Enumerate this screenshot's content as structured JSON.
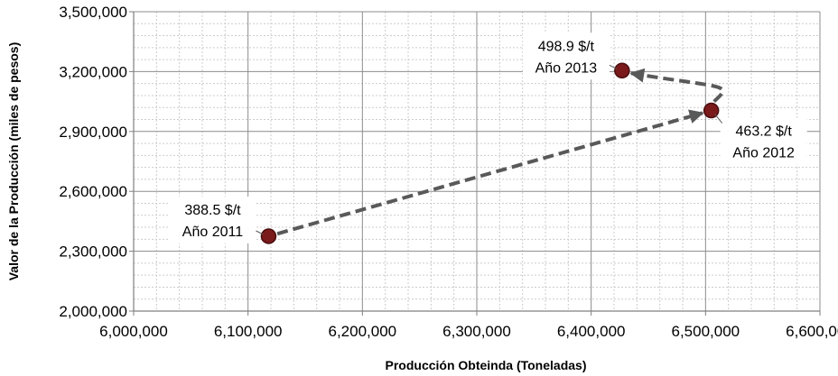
{
  "chart_data": {
    "type": "scatter",
    "title": "",
    "xlabel": "Producción Obteinda (Toneladas)",
    "ylabel": "Valor de la  Producción (miles de pesos)",
    "xlim": [
      6000000,
      6600000
    ],
    "ylim": [
      2000000,
      3500000
    ],
    "x_ticks": [
      6000000,
      6100000,
      6200000,
      6300000,
      6400000,
      6500000,
      6600000
    ],
    "x_tick_labels": [
      "6,000,000",
      "6,100,000",
      "6,200,000",
      "6,300,000",
      "6,400,000",
      "6,500,000",
      "6,600,000"
    ],
    "y_ticks": [
      2000000,
      2300000,
      2600000,
      2900000,
      3200000,
      3500000
    ],
    "y_tick_labels": [
      "2,000,000",
      "2,300,000",
      "2,600,000",
      "2,900,000",
      "3,200,000",
      "3,500,000"
    ],
    "grid": true,
    "connector": "dashed arrows",
    "points": [
      {
        "x": 6118000,
        "y": 2375000,
        "price": "388.5 $/t",
        "year": "Año  2011"
      },
      {
        "x": 6505000,
        "y": 3005000,
        "price": "463.2 $/t",
        "year": "Año 2012"
      },
      {
        "x": 6427000,
        "y": 3205000,
        "price": "498.9 $/t",
        "year": "Año 2013"
      }
    ],
    "colors": {
      "marker": "#7a1a1a",
      "connector": "#595959",
      "major_grid": "#8c8c8c",
      "minor_grid": "#cccccc"
    }
  }
}
